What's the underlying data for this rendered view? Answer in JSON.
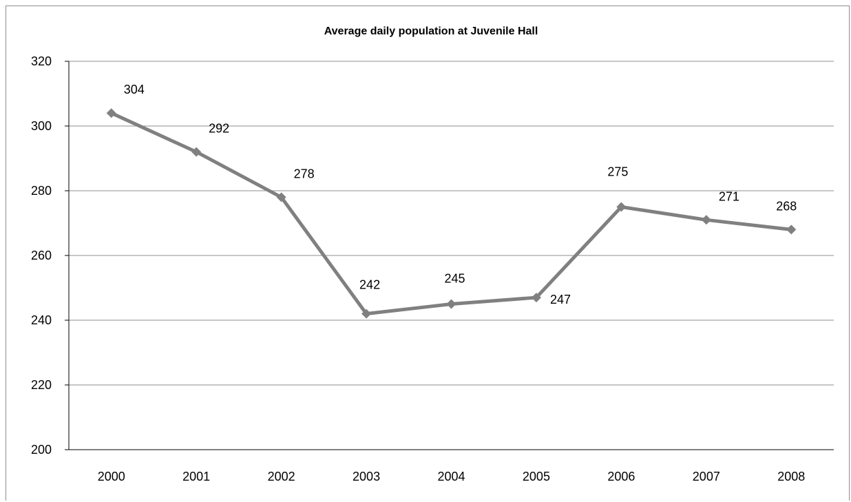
{
  "chart_data": {
    "type": "line",
    "title": "Average daily population at Juvenile Hall",
    "xlabel": "",
    "ylabel": "",
    "categories": [
      "2000",
      "2001",
      "2002",
      "2003",
      "2004",
      "2005",
      "2006",
      "2007",
      "2008"
    ],
    "series": [
      {
        "values": [
          304,
          292,
          278,
          242,
          245,
          247,
          275,
          271,
          268
        ],
        "data_labels": [
          "304",
          "292",
          "278",
          "242",
          "245",
          "247",
          "275",
          "271",
          "268"
        ]
      }
    ],
    "y_ticks": [
      "200",
      "220",
      "240",
      "260",
      "280",
      "300",
      "320"
    ],
    "ylim": [
      200,
      320
    ],
    "grid": "horizontal",
    "legend": "none",
    "colors": {
      "line": "#808080",
      "marker": "#808080",
      "grid": "#8c8c8c",
      "axis": "#000000"
    }
  }
}
